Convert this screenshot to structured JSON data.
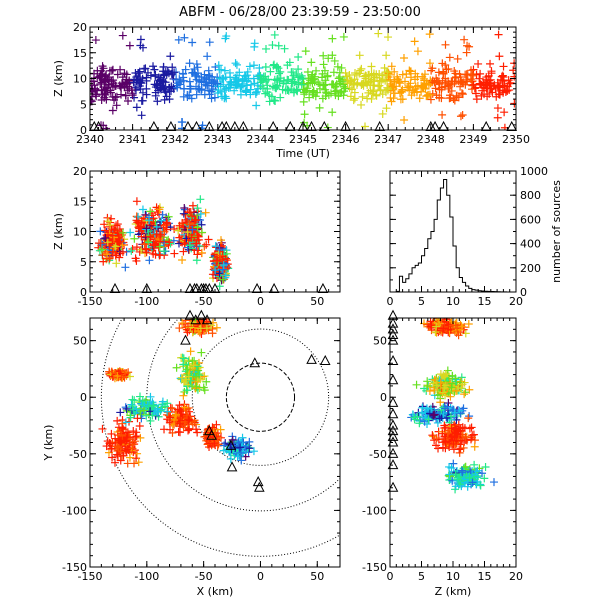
{
  "title": "ABFM - 06/28/00 23:39:59 - 23:50:00",
  "colors": {
    "scale": [
      "#5a0066",
      "#1a1aa0",
      "#1f6fe0",
      "#16c8e8",
      "#22e888",
      "#66e020",
      "#d8d820",
      "#ffa000",
      "#ff5000",
      "#ff1e00"
    ],
    "marker": "#000000"
  },
  "chart_data": [
    {
      "type": "scatter",
      "name": "time-height",
      "title": "ABFM - 06/28/00 23:39:59 - 23:50:00",
      "xlabel": "Time (UT)",
      "ylabel": "Z (km)",
      "xlim": [
        2340,
        2350
      ],
      "ylim": [
        0,
        20
      ],
      "xticks": [
        "2340",
        "2341",
        "2342",
        "2343",
        "2344",
        "2345",
        "2346",
        "2347",
        "2348",
        "2349",
        "2350"
      ],
      "yticks": [
        "0",
        "5",
        "10",
        "15",
        "20"
      ],
      "station_times": [
        2340.1,
        2340.2,
        2341.5,
        2341.9,
        2342.3,
        2342.5,
        2342.8,
        2343.1,
        2343.2,
        2343.4,
        2343.6,
        2344.3,
        2344.7,
        2345.0,
        2345.2,
        2345.5,
        2346.0,
        2346.8,
        2348.0,
        2348.1,
        2348.3,
        2349.3,
        2349.9
      ]
    },
    {
      "type": "scatter",
      "name": "x-z",
      "ylabel": "Z (km)",
      "xlim": [
        -150,
        70
      ],
      "ylim": [
        0,
        20
      ],
      "xticks": [
        "-150",
        "-100",
        "-50",
        "0",
        "50"
      ],
      "yticks": [
        "0",
        "5",
        "10",
        "15",
        "20"
      ],
      "stations_x": [
        -128,
        -100,
        -62,
        -58,
        -56,
        -52,
        -50,
        -48,
        -45,
        -40,
        -3,
        12,
        55
      ]
    },
    {
      "type": "bar",
      "name": "altitude-histogram",
      "ylabel": "number of sources",
      "xlim": [
        0,
        20
      ],
      "ylim": [
        0,
        1000
      ],
      "xticks": [
        "0",
        "5",
        "10",
        "15",
        "20"
      ],
      "yticks": [
        "0",
        "200",
        "400",
        "600",
        "800",
        "1000"
      ],
      "bin_width": 0.5,
      "values": [
        0,
        0,
        5,
        130,
        80,
        110,
        150,
        200,
        220,
        240,
        300,
        360,
        440,
        500,
        600,
        760,
        860,
        930,
        800,
        620,
        380,
        200,
        120,
        80,
        50,
        30,
        20,
        15,
        10,
        8,
        6,
        5,
        4,
        3,
        2,
        1,
        1,
        0,
        0,
        0
      ]
    },
    {
      "type": "scatter",
      "name": "plan-view",
      "xlabel": "X (km)",
      "ylabel": "Y (km)",
      "xlim": [
        -150,
        70
      ],
      "ylim": [
        -150,
        70
      ],
      "xticks": [
        "-150",
        "-100",
        "-50",
        "0",
        "50"
      ],
      "yticks": [
        "-150",
        "-100",
        "-50",
        "0",
        "50"
      ],
      "range_rings_km": [
        30,
        60,
        100,
        140
      ],
      "stations": [
        [
          -62,
          72
        ],
        [
          -57,
          68
        ],
        [
          -52,
          72
        ],
        [
          -47,
          68
        ],
        [
          -66,
          50
        ],
        [
          -5,
          30
        ],
        [
          45,
          33
        ],
        [
          57,
          32
        ],
        [
          -45,
          -30
        ],
        [
          -43,
          -34
        ],
        [
          -26,
          -43
        ],
        [
          -25,
          -62
        ],
        [
          -2,
          -75
        ],
        [
          -1,
          -80
        ]
      ]
    },
    {
      "type": "scatter",
      "name": "z-y",
      "xlabel": "Z (km)",
      "xlim": [
        0,
        20
      ],
      "ylim": [
        -150,
        70
      ],
      "xticks": [
        "0",
        "5",
        "10",
        "15",
        "20"
      ],
      "yticks": [
        "-150",
        "-100",
        "-50",
        "0",
        "50"
      ],
      "stations_y": [
        72,
        65,
        60,
        55,
        50,
        32,
        15,
        -5,
        -15,
        -25,
        -30,
        -35,
        -40,
        -50,
        -60,
        -80
      ]
    }
  ]
}
